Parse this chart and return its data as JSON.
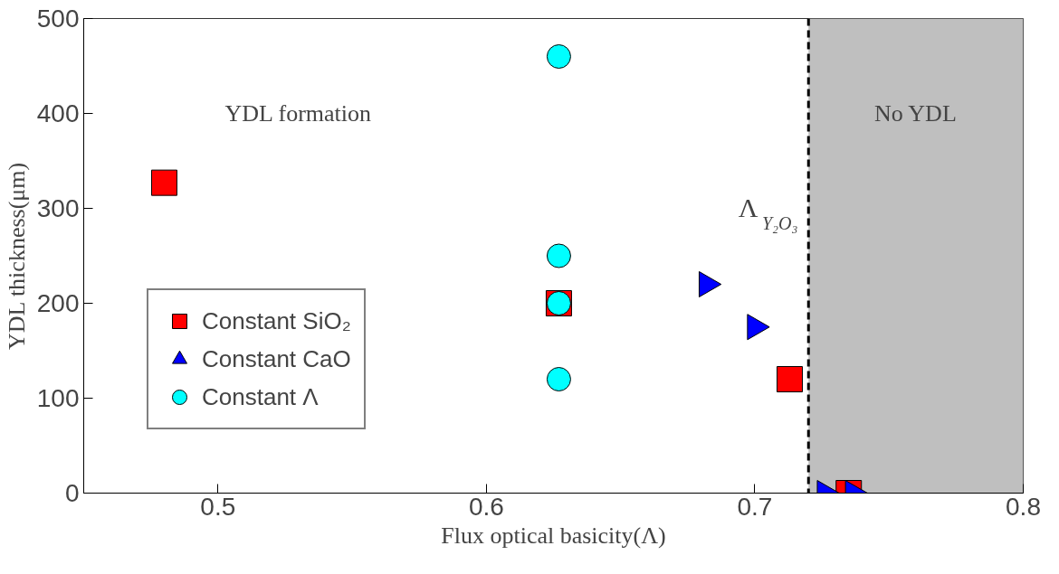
{
  "chart_data": {
    "type": "scatter",
    "xlabel": "Flux optical basicity(Λ)",
    "ylabel": "YDL thickness(μm)",
    "xlim": [
      0.45,
      0.8
    ],
    "ylim": [
      0,
      500
    ],
    "xticks": [
      0.5,
      0.6,
      0.7,
      0.8
    ],
    "yticks": [
      0,
      100,
      200,
      300,
      400,
      500
    ],
    "grid": false,
    "legend": "bottom left",
    "series": [
      {
        "name": "Constant SiO₂",
        "color": "#ff0000",
        "marker": "square",
        "x": [
          0.48,
          0.627,
          0.713,
          0.735
        ],
        "values": [
          327,
          200,
          120,
          0
        ]
      },
      {
        "name": "Constant CaO",
        "color": "#0000ff",
        "marker": "triangle",
        "x": [
          0.682,
          0.7,
          0.726,
          0.7365
        ],
        "values": [
          220,
          175,
          0,
          0
        ]
      },
      {
        "name": "Constant Λ",
        "color": "#00ffff",
        "marker": "circle",
        "x": [
          0.627,
          0.627,
          0.627,
          0.627
        ],
        "values": [
          460,
          250,
          200,
          120
        ]
      }
    ],
    "ref_lines": [
      {
        "axis": "x",
        "value": 0.72,
        "label": "Λ$_{Y₂O₃}$",
        "color": "#000000",
        "line_style": "dashed"
      }
    ],
    "bands": [
      {
        "axis": "x",
        "from": 0.72,
        "to": 0.8,
        "color": "#bfbfbf",
        "label": "No YDL"
      }
    ],
    "annotations": [
      "YDL formation"
    ]
  }
}
